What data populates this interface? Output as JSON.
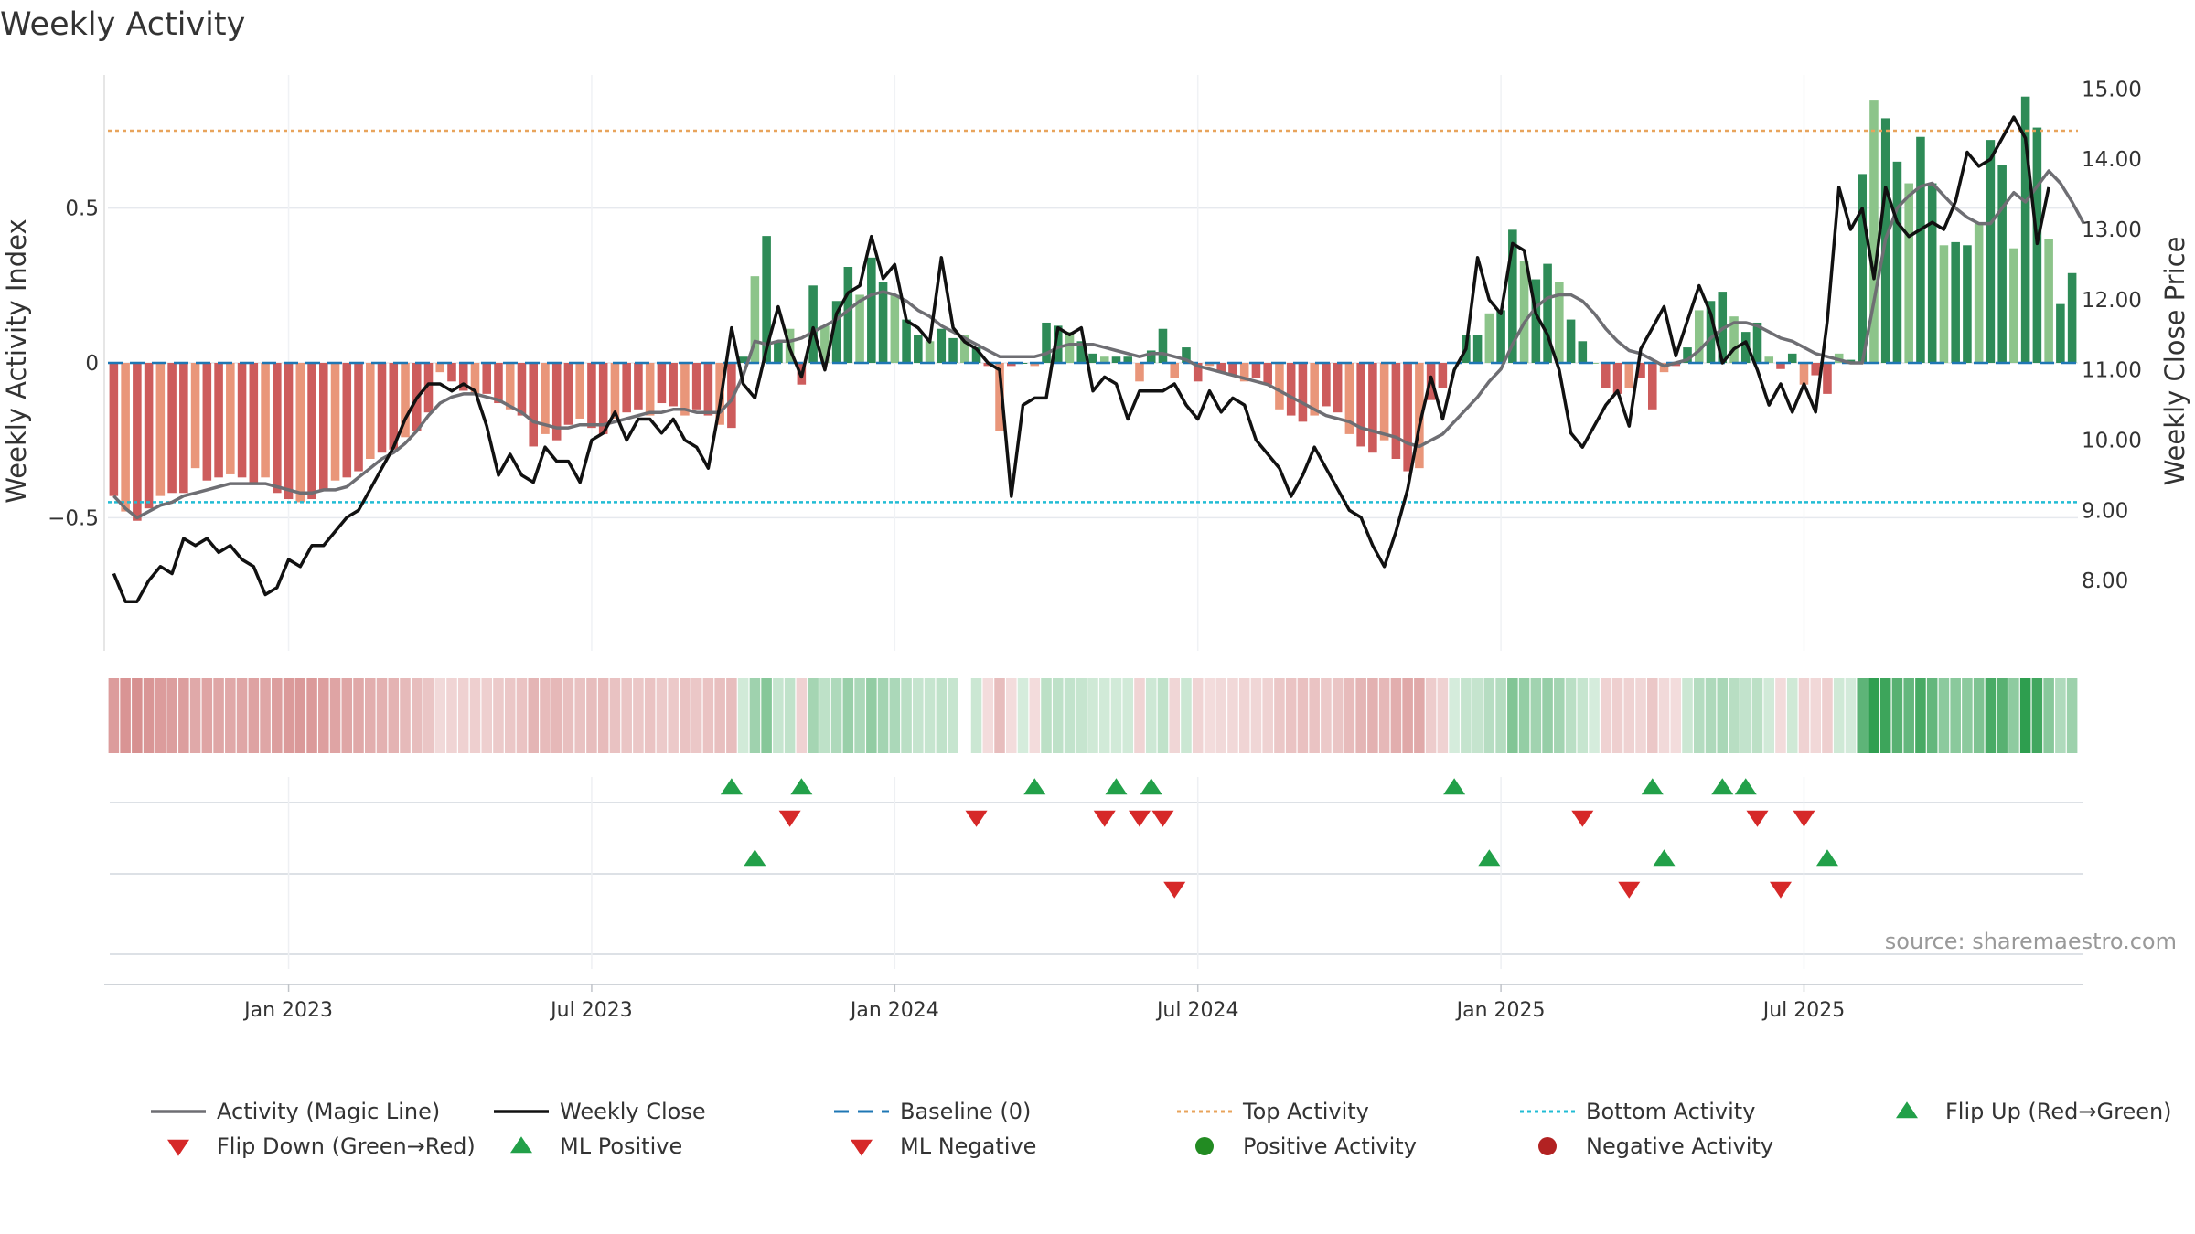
{
  "colors": {
    "pos_strong": "#2e8b57",
    "pos_light": "#8cc48a",
    "neg_strong": "#cd5c5c",
    "neg_light": "#e9967a",
    "magic": "#6e6e73",
    "close": "#111111",
    "baseline": "#1f77b4",
    "top": "#e8a45c",
    "bottom": "#22bcd4",
    "flip_up": "#22a049",
    "flip_down": "#d62828",
    "pos_dot": "#228b22",
    "neg_dot": "#b22222",
    "grid": "#e6e9ee"
  },
  "chart_data": {
    "type": "bar",
    "title": "Weekly Activity",
    "source": "source: sharemaestro.com",
    "ylabel": "Weekly Activity Index",
    "y2label": "Weekly Close Price",
    "ylim": [
      -0.93,
      0.93
    ],
    "y2lim": [
      7.0,
      15.2
    ],
    "y_ticks": [
      {
        "v": 0.5,
        "label": "0.5"
      },
      {
        "v": 0,
        "label": "0"
      },
      {
        "v": -0.5,
        "label": "−0.5"
      }
    ],
    "y2_ticks": [
      {
        "v": 15,
        "label": "15.00"
      },
      {
        "v": 14,
        "label": "14.00"
      },
      {
        "v": 13,
        "label": "13.00"
      },
      {
        "v": 12,
        "label": "12.00"
      },
      {
        "v": 11,
        "label": "11.00"
      },
      {
        "v": 10,
        "label": "10.00"
      },
      {
        "v": 9,
        "label": "9.00"
      },
      {
        "v": 8,
        "label": "8.00"
      }
    ],
    "x_ticks": [
      {
        "i": 15,
        "label": "Jan 2023"
      },
      {
        "i": 41,
        "label": "Jul 2023"
      },
      {
        "i": 67,
        "label": "Jan 2024"
      },
      {
        "i": 93,
        "label": "Jul 2024"
      },
      {
        "i": 119,
        "label": "Jan 2025"
      },
      {
        "i": 145,
        "label": "Jul 2025"
      }
    ],
    "top_activity": 0.75,
    "bottom_activity": -0.45,
    "baseline": 0,
    "activity": [
      -0.43,
      -0.48,
      -0.51,
      -0.47,
      -0.43,
      -0.42,
      -0.42,
      -0.34,
      -0.38,
      -0.37,
      -0.36,
      -0.37,
      -0.39,
      -0.37,
      -0.42,
      -0.44,
      -0.45,
      -0.44,
      -0.41,
      -0.38,
      -0.37,
      -0.35,
      -0.31,
      -0.29,
      -0.28,
      -0.24,
      -0.22,
      -0.16,
      -0.03,
      -0.06,
      -0.09,
      -0.1,
      -0.1,
      -0.13,
      -0.15,
      -0.17,
      -0.27,
      -0.23,
      -0.25,
      -0.2,
      -0.18,
      -0.21,
      -0.23,
      -0.18,
      -0.16,
      -0.15,
      -0.17,
      -0.13,
      -0.14,
      -0.17,
      -0.15,
      -0.17,
      -0.2,
      -0.21,
      0.02,
      0.28,
      0.41,
      0.07,
      0.11,
      -0.07,
      0.25,
      0.12,
      0.2,
      0.31,
      0.22,
      0.34,
      0.26,
      0.22,
      0.14,
      0.09,
      0.07,
      0.11,
      0.08,
      0.09,
      0.05,
      -0.01,
      -0.22,
      -0.01,
      0.0,
      -0.01,
      0.13,
      0.12,
      0.1,
      0.07,
      0.03,
      0.02,
      0.02,
      0.02,
      -0.06,
      0.04,
      0.11,
      -0.05,
      0.05,
      -0.06,
      -0.01,
      -0.03,
      -0.04,
      -0.06,
      -0.05,
      -0.07,
      -0.15,
      -0.17,
      -0.19,
      -0.17,
      -0.14,
      -0.16,
      -0.23,
      -0.27,
      -0.29,
      -0.25,
      -0.31,
      -0.35,
      -0.34,
      -0.12,
      -0.08,
      0.0,
      0.09,
      0.09,
      0.16,
      0.17,
      0.43,
      0.33,
      0.27,
      0.32,
      0.26,
      0.14,
      0.07,
      0.0,
      -0.08,
      -0.1,
      -0.08,
      -0.05,
      -0.15,
      -0.03,
      -0.01,
      0.05,
      0.17,
      0.2,
      0.23,
      0.15,
      0.1,
      0.13,
      0.02,
      -0.02,
      0.03,
      -0.07,
      -0.04,
      -0.1,
      0.03,
      0.01,
      0.61,
      0.85,
      0.79,
      0.65,
      0.58,
      0.73,
      0.58,
      0.38,
      0.39,
      0.38,
      0.45,
      0.72,
      0.64,
      0.37,
      0.86,
      0.76,
      0.4,
      0.19,
      0.29
    ],
    "magic_line": [
      -0.43,
      -0.47,
      -0.5,
      -0.48,
      -0.46,
      -0.45,
      -0.43,
      -0.42,
      -0.41,
      -0.4,
      -0.39,
      -0.39,
      -0.39,
      -0.39,
      -0.4,
      -0.41,
      -0.42,
      -0.42,
      -0.41,
      -0.41,
      -0.4,
      -0.37,
      -0.34,
      -0.31,
      -0.29,
      -0.26,
      -0.22,
      -0.17,
      -0.13,
      -0.11,
      -0.1,
      -0.1,
      -0.11,
      -0.12,
      -0.14,
      -0.16,
      -0.19,
      -0.2,
      -0.21,
      -0.21,
      -0.2,
      -0.2,
      -0.2,
      -0.19,
      -0.18,
      -0.17,
      -0.16,
      -0.16,
      -0.15,
      -0.15,
      -0.16,
      -0.16,
      -0.16,
      -0.12,
      -0.04,
      0.07,
      0.06,
      0.07,
      0.07,
      0.08,
      0.1,
      0.12,
      0.14,
      0.17,
      0.2,
      0.22,
      0.23,
      0.22,
      0.2,
      0.17,
      0.15,
      0.12,
      0.1,
      0.08,
      0.06,
      0.04,
      0.02,
      0.02,
      0.02,
      0.02,
      0.03,
      0.05,
      0.06,
      0.06,
      0.06,
      0.05,
      0.04,
      0.03,
      0.02,
      0.03,
      0.03,
      0.02,
      0.01,
      -0.01,
      -0.02,
      -0.03,
      -0.04,
      -0.05,
      -0.06,
      -0.07,
      -0.09,
      -0.11,
      -0.13,
      -0.15,
      -0.17,
      -0.18,
      -0.19,
      -0.21,
      -0.22,
      -0.23,
      -0.24,
      -0.26,
      -0.27,
      -0.25,
      -0.23,
      -0.19,
      -0.15,
      -0.11,
      -0.06,
      -0.02,
      0.06,
      0.13,
      0.18,
      0.21,
      0.22,
      0.22,
      0.2,
      0.16,
      0.11,
      0.07,
      0.04,
      0.03,
      0.01,
      -0.01,
      0.0,
      0.01,
      0.04,
      0.08,
      0.11,
      0.13,
      0.13,
      0.12,
      0.1,
      0.08,
      0.07,
      0.05,
      0.03,
      0.02,
      0.01,
      0.0,
      0.0,
      0.2,
      0.4,
      0.5,
      0.54,
      0.57,
      0.58,
      0.54,
      0.5,
      0.47,
      0.45,
      0.45,
      0.5,
      0.55,
      0.52,
      0.57,
      0.62,
      0.58,
      0.52,
      0.45
    ],
    "close": [
      8.1,
      7.7,
      7.7,
      8.0,
      8.2,
      8.1,
      8.6,
      8.5,
      8.6,
      8.4,
      8.5,
      8.3,
      8.2,
      7.8,
      7.9,
      8.3,
      8.2,
      8.5,
      8.5,
      8.7,
      8.9,
      9.0,
      9.3,
      9.6,
      9.9,
      10.3,
      10.6,
      10.8,
      10.8,
      10.7,
      10.8,
      10.7,
      10.2,
      9.5,
      9.8,
      9.5,
      9.4,
      9.9,
      9.7,
      9.7,
      9.4,
      10.0,
      10.1,
      10.4,
      10.0,
      10.3,
      10.3,
      10.1,
      10.3,
      10.0,
      9.9,
      9.6,
      10.5,
      11.6,
      10.8,
      10.6,
      11.3,
      11.9,
      11.3,
      10.9,
      11.6,
      11.0,
      11.8,
      12.1,
      12.2,
      12.9,
      12.3,
      12.5,
      11.7,
      11.6,
      11.4,
      12.6,
      11.6,
      11.4,
      11.3,
      11.1,
      11.0,
      9.2,
      10.5,
      10.6,
      10.6,
      11.6,
      11.5,
      11.6,
      10.7,
      10.9,
      10.8,
      10.3,
      10.7,
      10.7,
      10.7,
      10.8,
      10.5,
      10.3,
      10.7,
      10.4,
      10.6,
      10.5,
      10.0,
      9.8,
      9.6,
      9.2,
      9.5,
      9.9,
      9.6,
      9.3,
      9.0,
      8.9,
      8.5,
      8.2,
      8.7,
      9.3,
      10.2,
      10.9,
      10.3,
      11.0,
      11.3,
      12.6,
      12.0,
      11.8,
      12.8,
      12.7,
      11.8,
      11.5,
      11.0,
      10.1,
      9.9,
      10.2,
      10.5,
      10.7,
      10.2,
      11.3,
      11.6,
      11.9,
      11.2,
      11.7,
      12.2,
      11.8,
      11.1,
      11.3,
      11.4,
      11.0,
      10.5,
      10.8,
      10.4,
      10.8,
      10.4,
      11.7,
      13.6,
      13.0,
      13.3,
      12.3,
      13.6,
      13.1,
      12.9,
      13.0,
      13.1,
      13.0,
      13.4,
      14.1,
      13.9,
      14.0,
      14.3,
      14.6,
      14.3,
      12.8,
      13.6
    ],
    "ribbon_gaps": [
      73
    ],
    "markers": [
      {
        "row": 0,
        "kind": "up",
        "i": [
          53,
          59,
          79,
          86,
          89,
          115,
          132,
          138,
          140
        ]
      },
      {
        "row": 1,
        "kind": "down",
        "i": [
          58,
          74,
          85,
          88,
          90,
          126,
          141,
          145
        ]
      },
      {
        "row": 2,
        "kind": "up",
        "i": [
          55,
          118,
          133,
          147
        ]
      },
      {
        "row": 3,
        "kind": "down",
        "i": [
          91,
          130,
          143
        ]
      }
    ],
    "legend": [
      {
        "label": "Activity (Magic Line)",
        "symbol": "line",
        "color_key": "magic"
      },
      {
        "label": "Weekly Close",
        "symbol": "line",
        "color_key": "close"
      },
      {
        "label": "Baseline (0)",
        "symbol": "dash",
        "color_key": "baseline"
      },
      {
        "label": "Top Activity",
        "symbol": "dot_line",
        "color_key": "top"
      },
      {
        "label": "Bottom Activity",
        "symbol": "dot_line",
        "color_key": "bottom"
      },
      {
        "label": "Flip Up (Red→Green)",
        "symbol": "tri_up",
        "color_key": "flip_up"
      },
      {
        "label": "Flip Down (Green→Red)",
        "symbol": "tri_down",
        "color_key": "flip_down"
      },
      {
        "label": "ML Positive",
        "symbol": "tri_up",
        "color_key": "flip_up"
      },
      {
        "label": "ML Negative",
        "symbol": "tri_down",
        "color_key": "flip_down"
      },
      {
        "label": "Positive Activity",
        "symbol": "dot",
        "color_key": "pos_dot"
      },
      {
        "label": "Negative Activity",
        "symbol": "dot",
        "color_key": "neg_dot"
      }
    ]
  }
}
